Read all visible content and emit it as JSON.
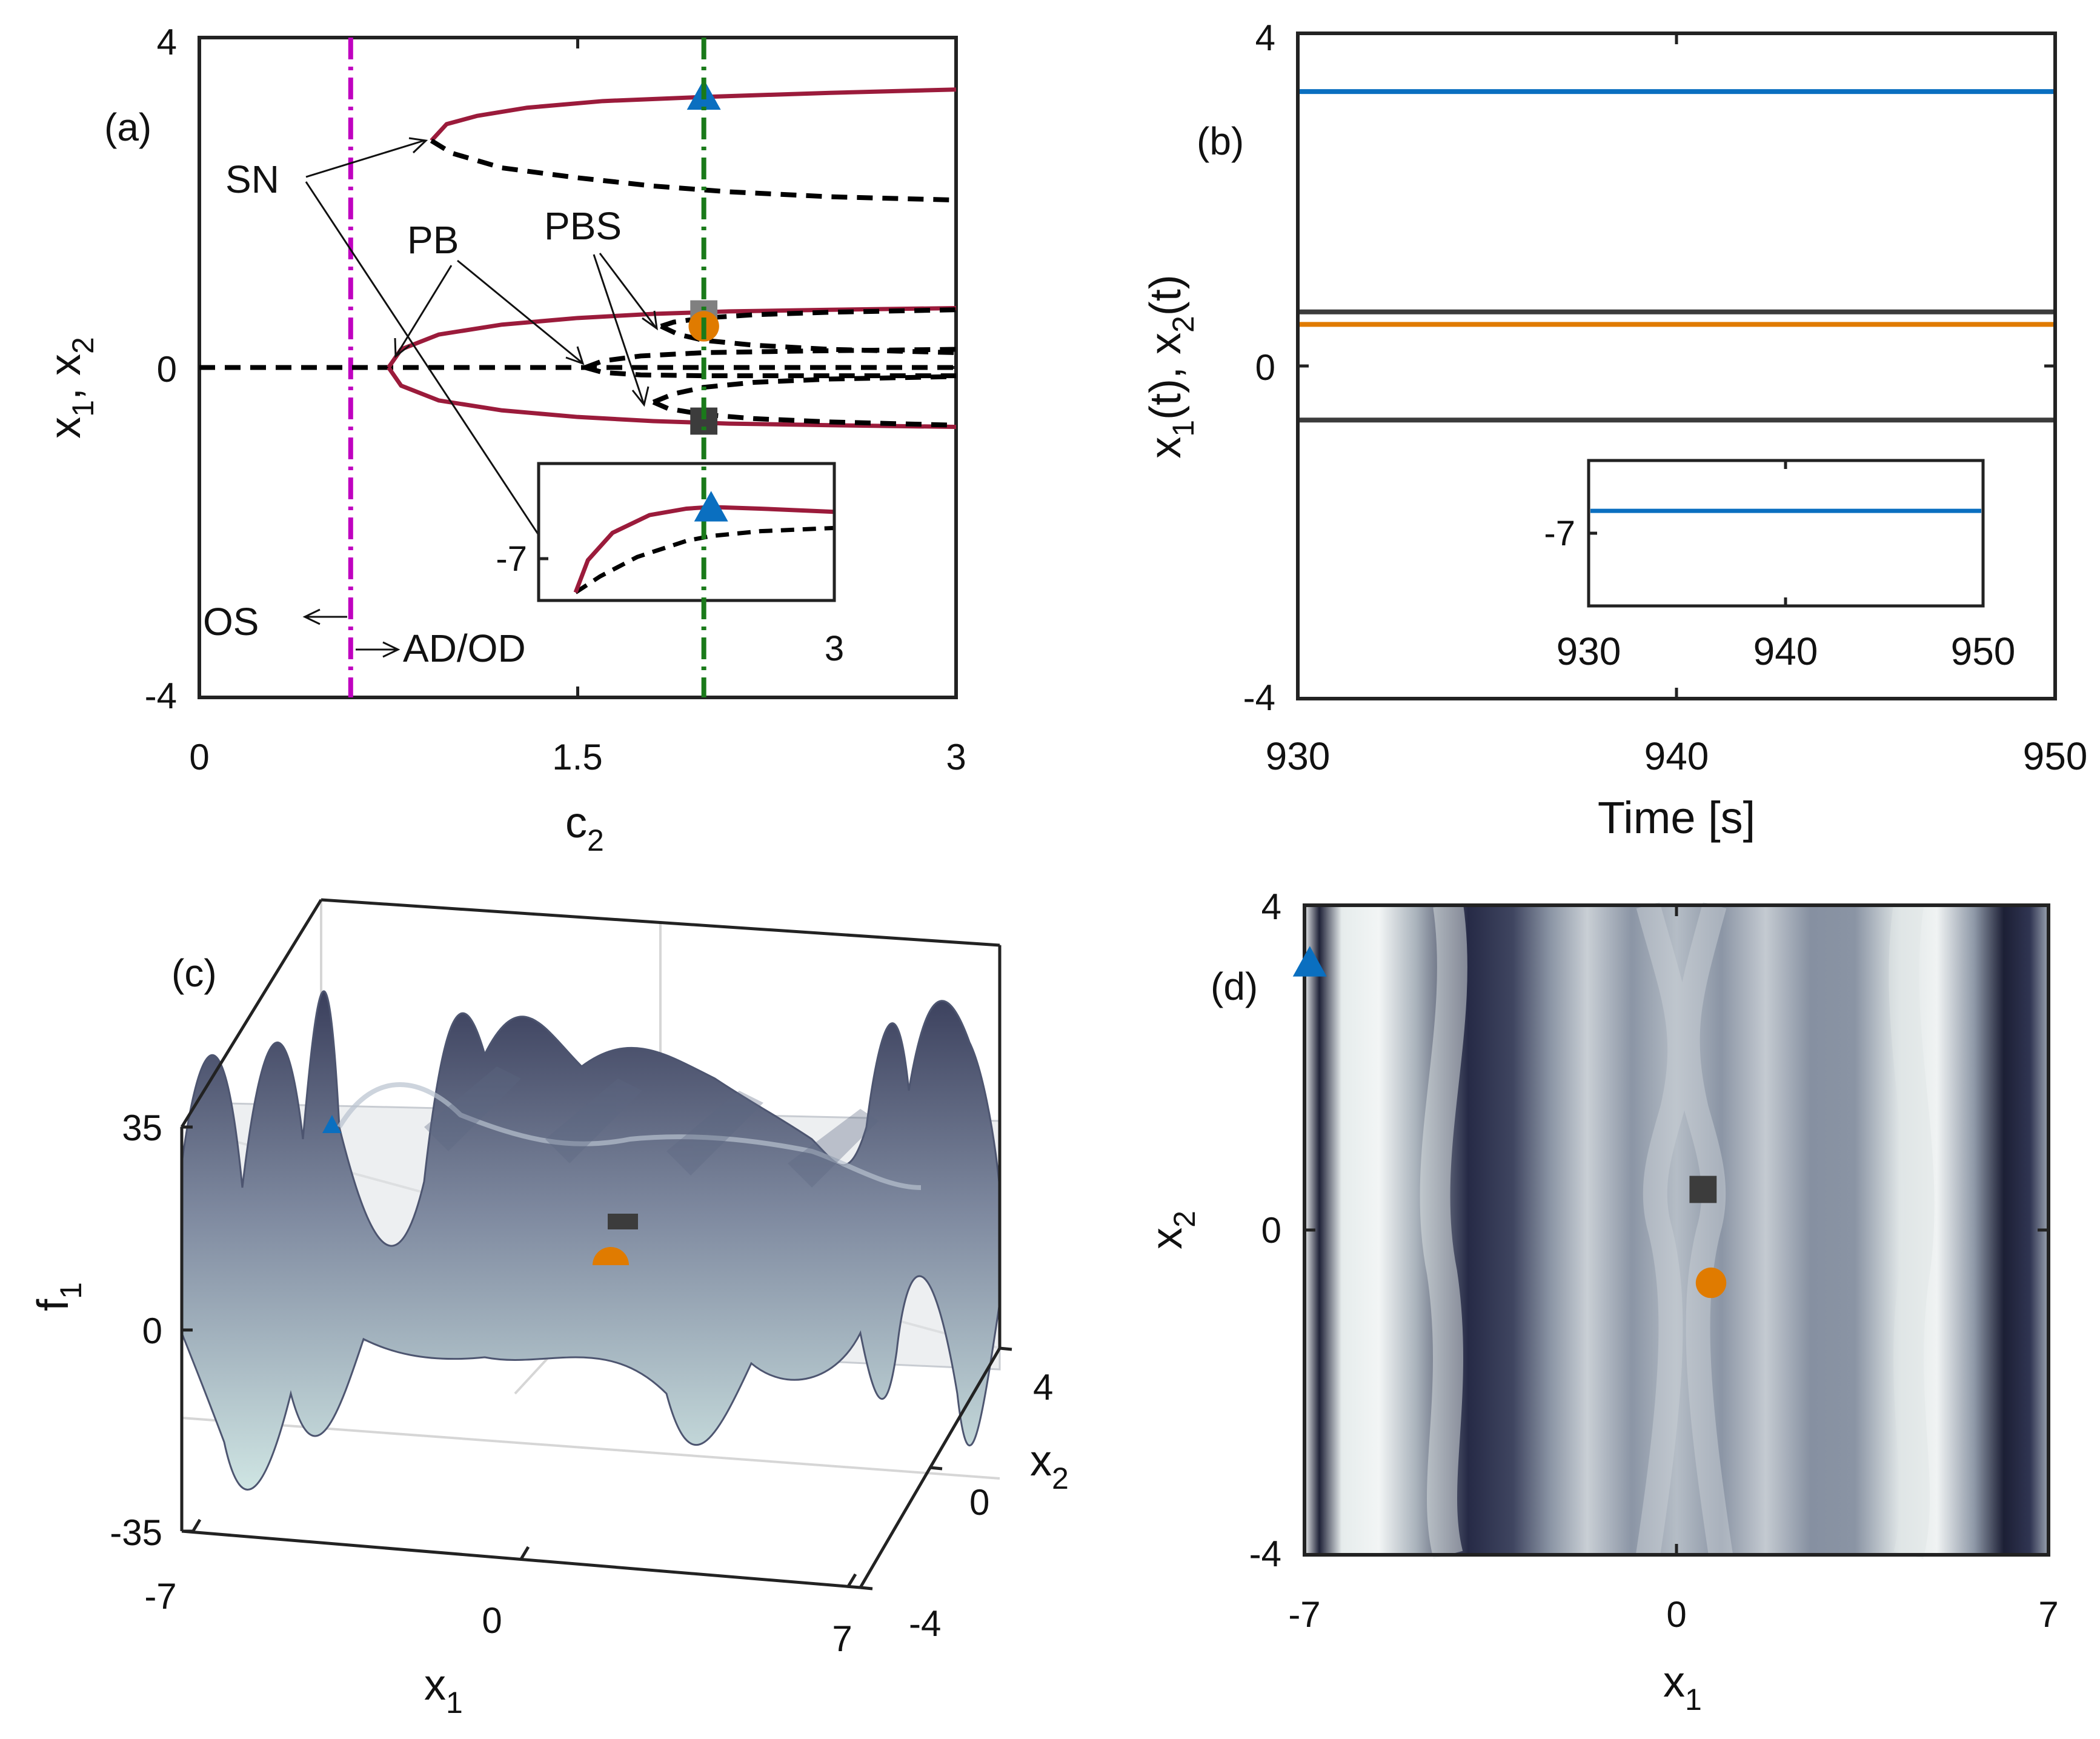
{
  "colors": {
    "stable": "#9b1b3b",
    "unstable": "#000000",
    "os_line": "#c000c0",
    "c2_line": "#1a7a1a",
    "blue": "#0a6fc0",
    "orange": "#e07b00",
    "dark_gray": "#3c3c3c",
    "gray": "#808080"
  },
  "icons": {
    "triangle": "triangle-marker-icon",
    "circle": "circle-marker-icon",
    "square": "square-marker-icon"
  },
  "chart_data": [
    {
      "id": "a",
      "panel_label": "(a)",
      "type": "line",
      "title": "",
      "xlabel": "c",
      "xlabel_sub": "2",
      "ylabel": "x",
      "ylabel_sub1": "1",
      "ylabel_sep": ", x",
      "ylabel_sub2": "2",
      "xlim": [
        0,
        3
      ],
      "ylim": [
        -4,
        4
      ],
      "xticks": [
        "0",
        "1.5",
        "3"
      ],
      "xtick_values": [
        0,
        1.5,
        3
      ],
      "yticks": [
        "-4",
        "0",
        "4"
      ],
      "ytick_values": [
        -4,
        0,
        4
      ],
      "os_line_c2": 0.6,
      "selected_c2": 2.0,
      "annotations": [
        "SN",
        "PB",
        "PBS",
        "OS",
        "AD/OD"
      ],
      "series": [
        {
          "name": "trivial state (unstable)",
          "style": "dashed",
          "x": [
            0,
            3
          ],
          "y": [
            0,
            0
          ]
        },
        {
          "name": "upper branch (stable)",
          "style": "solid",
          "x": [
            0.92,
            0.98,
            1.1,
            1.3,
            1.6,
            2.0,
            2.5,
            3.0
          ],
          "y": [
            2.75,
            2.95,
            3.05,
            3.15,
            3.23,
            3.28,
            3.33,
            3.37
          ]
        },
        {
          "name": "upper branch (unstable)",
          "style": "dashed",
          "x": [
            0.92,
            1.0,
            1.2,
            1.5,
            1.8,
            2.1,
            2.5,
            3.0
          ],
          "y": [
            2.75,
            2.6,
            2.42,
            2.3,
            2.2,
            2.13,
            2.07,
            2.03
          ]
        },
        {
          "name": "pitchfork branch + (stable)",
          "style": "solid",
          "x": [
            0.75,
            0.8,
            0.95,
            1.2,
            1.5,
            1.8,
            2.1,
            2.5,
            3.0
          ],
          "y": [
            0.0,
            0.22,
            0.4,
            0.52,
            0.6,
            0.65,
            0.68,
            0.7,
            0.72
          ]
        },
        {
          "name": "pitchfork branch - (stable)",
          "style": "solid",
          "x": [
            0.75,
            0.8,
            0.95,
            1.2,
            1.5,
            1.8,
            2.1,
            2.5,
            3.0
          ],
          "y": [
            0.0,
            -0.22,
            -0.4,
            -0.52,
            -0.6,
            -0.65,
            -0.68,
            -0.7,
            -0.72
          ]
        },
        {
          "name": "secondary + outer (unstable)",
          "style": "dashed",
          "x": [
            1.83,
            1.88,
            2.0,
            2.2,
            2.5,
            3.0
          ],
          "y": [
            0.5,
            0.55,
            0.6,
            0.64,
            0.67,
            0.7
          ]
        },
        {
          "name": "secondary + inner (unstable)",
          "style": "dashed",
          "x": [
            1.83,
            1.9,
            2.0,
            2.2,
            2.5,
            3.0
          ],
          "y": [
            0.5,
            0.4,
            0.33,
            0.27,
            0.22,
            0.18
          ]
        },
        {
          "name": "secondary - outer (unstable)",
          "style": "dashed",
          "x": [
            1.8,
            1.86,
            2.0,
            2.2,
            2.5,
            3.0
          ],
          "y": [
            -0.42,
            -0.5,
            -0.57,
            -0.62,
            -0.66,
            -0.7
          ]
        },
        {
          "name": "secondary - inner (unstable)",
          "style": "dashed",
          "x": [
            1.8,
            1.88,
            2.0,
            2.2,
            2.5,
            3.0
          ],
          "y": [
            -0.42,
            -0.32,
            -0.24,
            -0.18,
            -0.14,
            -0.11
          ]
        },
        {
          "name": "central + (unstable)",
          "style": "dashed",
          "x": [
            1.53,
            1.6,
            1.75,
            2.0,
            2.4,
            3.0
          ],
          "y": [
            0.0,
            0.08,
            0.14,
            0.18,
            0.2,
            0.22
          ]
        },
        {
          "name": "central - (unstable)",
          "style": "dashed",
          "x": [
            1.53,
            1.6,
            1.75,
            2.0,
            2.4,
            3.0
          ],
          "y": [
            0.0,
            -0.06,
            -0.09,
            -0.1,
            -0.1,
            -0.1
          ]
        }
      ],
      "markers": [
        {
          "shape": "triangle",
          "color": "blue",
          "x": 2.0,
          "y": 3.3
        },
        {
          "shape": "square",
          "color": "gray",
          "x": 2.0,
          "y": 0.65
        },
        {
          "shape": "circle",
          "color": "orange",
          "x": 2.0,
          "y": 0.5
        },
        {
          "shape": "square",
          "color": "dark_gray",
          "x": 2.0,
          "y": -0.65
        }
      ],
      "inset": {
        "ytick": "-7",
        "xtick": "3",
        "xlim": [
          1.3,
          2.5
        ],
        "ylim": [
          -7.35,
          -6.5
        ],
        "stable": {
          "x": [
            1.45,
            1.5,
            1.6,
            1.75,
            1.9,
            2.0,
            2.2,
            2.5
          ],
          "y": [
            -7.3,
            -7.1,
            -6.93,
            -6.82,
            -6.78,
            -6.77,
            -6.78,
            -6.8
          ]
        },
        "unstable": {
          "x": [
            1.45,
            1.55,
            1.7,
            1.9,
            2.0,
            2.2,
            2.5
          ],
          "y": [
            -7.3,
            -7.2,
            -7.08,
            -6.98,
            -6.95,
            -6.92,
            -6.9
          ]
        },
        "marker": {
          "shape": "triangle",
          "color": "blue",
          "x": 2.0,
          "y": -6.77
        }
      }
    },
    {
      "id": "b",
      "panel_label": "(b)",
      "type": "line",
      "xlabel": "Time [s]",
      "ylabel": "x",
      "ylabel_sub1": "1",
      "ylabel_mid": "(t), x",
      "ylabel_sub2": "2",
      "ylabel_end": "(t)",
      "xlim": [
        930,
        950
      ],
      "ylim": [
        -4,
        4
      ],
      "xticks": [
        "930",
        "940",
        "950"
      ],
      "xtick_values": [
        930,
        940,
        950
      ],
      "yticks": [
        "-4",
        "0",
        "4"
      ],
      "ytick_values": [
        -4,
        0,
        4
      ],
      "series": [
        {
          "name": "x1 upper",
          "color": "blue",
          "y": 3.3
        },
        {
          "name": "x2 (gray)",
          "color": "dark_gray",
          "y": 0.65
        },
        {
          "name": "x2 (orange)",
          "color": "orange",
          "y": 0.5
        },
        {
          "name": "x1 lower",
          "color": "dark_gray",
          "y": -0.65
        }
      ],
      "inset": {
        "xticks": [
          "930",
          "940",
          "950"
        ],
        "xtick_values": [
          930,
          940,
          950
        ],
        "ytick": "-7",
        "ylim": [
          -7.6,
          -6.3
        ],
        "series": {
          "color": "blue",
          "y": -6.75
        }
      }
    },
    {
      "id": "c",
      "panel_label": "(c)",
      "type": "surface",
      "xlabel": "x",
      "xlabel_sub": "1",
      "ylabel": "x",
      "ylabel_sub": "2",
      "zlabel": "f",
      "zlabel_sub": "1",
      "xticks": [
        "-7",
        "0",
        "7"
      ],
      "yticks": [
        "-4",
        "0",
        "4"
      ],
      "zticks": [
        "-35",
        "0",
        "35"
      ],
      "xlim": [
        -7,
        7
      ],
      "ylim": [
        -4,
        4
      ],
      "zlim": [
        -35,
        35
      ]
    },
    {
      "id": "d",
      "panel_label": "(d)",
      "type": "heatmap",
      "xlabel": "x",
      "xlabel_sub": "1",
      "ylabel": "x",
      "ylabel_sub": "2",
      "xlim": [
        -7,
        7
      ],
      "ylim": [
        -4,
        4
      ],
      "xticks": [
        "-7",
        "0",
        "7"
      ],
      "xtick_values": [
        -7,
        0,
        7
      ],
      "yticks": [
        "-4",
        "0",
        "4"
      ],
      "ytick_values": [
        -4,
        0,
        4
      ],
      "markers": [
        {
          "shape": "triangle",
          "color": "blue",
          "x": -6.9,
          "y": 3.3
        },
        {
          "shape": "square",
          "color": "dark_gray",
          "x": 0.5,
          "y": 0.5
        },
        {
          "shape": "circle",
          "color": "orange",
          "x": 0.65,
          "y": -0.65
        }
      ]
    }
  ]
}
